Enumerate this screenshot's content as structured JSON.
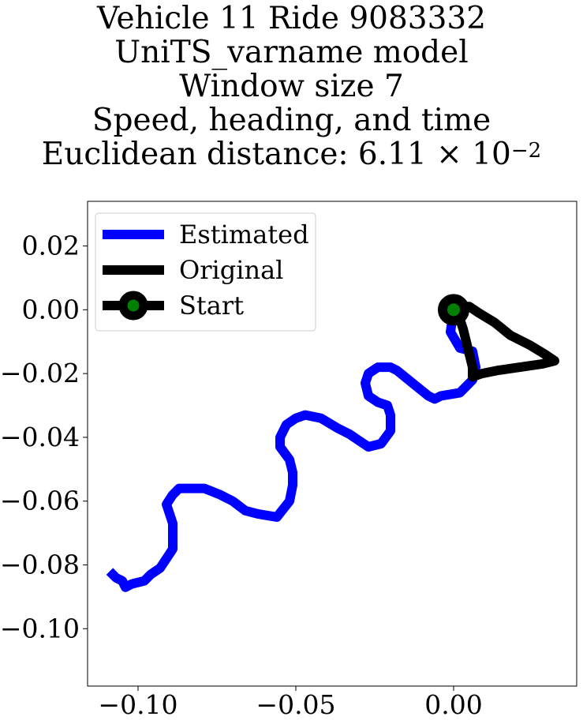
{
  "chart_data": {
    "type": "line",
    "title_lines": [
      "Vehicle 11 Ride 9083332",
      "UniTS_varname model",
      "Window size 7",
      "Speed, heading, and time"
    ],
    "title_metric_prefix": "Euclidean distance: 6.11 × 10",
    "title_metric_exponent": "−2",
    "xlabel": "",
    "ylabel": "",
    "xlim": [
      -0.116,
      0.039
    ],
    "ylim": [
      -0.118,
      0.034
    ],
    "x_ticks": [
      -0.1,
      -0.05,
      0.0
    ],
    "x_tick_labels": [
      "−0.10",
      "−0.05",
      "0.00"
    ],
    "y_ticks": [
      0.02,
      0.0,
      -0.02,
      -0.04,
      -0.06,
      -0.08,
      -0.1
    ],
    "y_tick_labels": [
      "0.02",
      "0.00",
      "−0.02",
      "−0.04",
      "−0.06",
      "−0.08",
      "−0.10"
    ],
    "grid": false,
    "legend_position": "top-left",
    "series": [
      {
        "name": "Estimated",
        "color": "#0000ff",
        "points": [
          [
            0.0,
            0.0
          ],
          [
            -0.001,
            -0.007
          ],
          [
            0.002,
            -0.012
          ],
          [
            0.006,
            -0.013
          ],
          [
            0.007,
            -0.018
          ],
          [
            0.006,
            -0.022
          ],
          [
            0.002,
            -0.026
          ],
          [
            -0.004,
            -0.027
          ],
          [
            -0.006,
            -0.028
          ],
          [
            -0.008,
            -0.027
          ],
          [
            -0.013,
            -0.023
          ],
          [
            -0.018,
            -0.019
          ],
          [
            -0.02,
            -0.018
          ],
          [
            -0.024,
            -0.018
          ],
          [
            -0.027,
            -0.02
          ],
          [
            -0.028,
            -0.023
          ],
          [
            -0.027,
            -0.027
          ],
          [
            -0.024,
            -0.029
          ],
          [
            -0.021,
            -0.03
          ],
          [
            -0.02,
            -0.033
          ],
          [
            -0.02,
            -0.038
          ],
          [
            -0.023,
            -0.042
          ],
          [
            -0.027,
            -0.043
          ],
          [
            -0.03,
            -0.041
          ],
          [
            -0.033,
            -0.039
          ],
          [
            -0.037,
            -0.037
          ],
          [
            -0.042,
            -0.034
          ],
          [
            -0.047,
            -0.033
          ],
          [
            -0.05,
            -0.034
          ],
          [
            -0.053,
            -0.036
          ],
          [
            -0.055,
            -0.04
          ],
          [
            -0.055,
            -0.043
          ],
          [
            -0.052,
            -0.047
          ],
          [
            -0.051,
            -0.051
          ],
          [
            -0.051,
            -0.055
          ],
          [
            -0.052,
            -0.06
          ],
          [
            -0.056,
            -0.065
          ],
          [
            -0.062,
            -0.064
          ],
          [
            -0.066,
            -0.063
          ],
          [
            -0.07,
            -0.06
          ],
          [
            -0.074,
            -0.058
          ],
          [
            -0.079,
            -0.056
          ],
          [
            -0.083,
            -0.056
          ],
          [
            -0.087,
            -0.056
          ],
          [
            -0.089,
            -0.058
          ],
          [
            -0.091,
            -0.061
          ],
          [
            -0.09,
            -0.064
          ],
          [
            -0.089,
            -0.067
          ],
          [
            -0.089,
            -0.071
          ],
          [
            -0.089,
            -0.075
          ],
          [
            -0.091,
            -0.078
          ],
          [
            -0.093,
            -0.081
          ],
          [
            -0.096,
            -0.083
          ],
          [
            -0.098,
            -0.085
          ],
          [
            -0.102,
            -0.086
          ],
          [
            -0.104,
            -0.087
          ],
          [
            -0.105,
            -0.085
          ],
          [
            -0.107,
            -0.084
          ],
          [
            -0.109,
            -0.082
          ]
        ]
      },
      {
        "name": "Original",
        "color": "#000000",
        "points": [
          [
            0.0,
            0.0
          ],
          [
            0.002,
            0.001
          ],
          [
            0.005,
            0.001
          ],
          [
            0.008,
            -0.001
          ],
          [
            0.013,
            -0.004
          ],
          [
            0.018,
            -0.008
          ],
          [
            0.024,
            -0.011
          ],
          [
            0.029,
            -0.014
          ],
          [
            0.032,
            -0.016
          ],
          [
            0.028,
            -0.017
          ],
          [
            0.021,
            -0.018
          ],
          [
            0.014,
            -0.019
          ],
          [
            0.009,
            -0.02
          ],
          [
            0.006,
            -0.021
          ],
          [
            0.006,
            -0.018
          ],
          [
            0.005,
            -0.014
          ],
          [
            0.004,
            -0.01
          ],
          [
            0.003,
            -0.006
          ],
          [
            0.002,
            -0.003
          ],
          [
            0.002,
            -0.001
          ],
          [
            0.0,
            0.0
          ]
        ]
      }
    ],
    "start": {
      "name": "Start",
      "x": 0.0,
      "y": 0.0,
      "line_color": "#000000",
      "marker_fill": "#008000",
      "marker_edge": "#000000"
    }
  }
}
